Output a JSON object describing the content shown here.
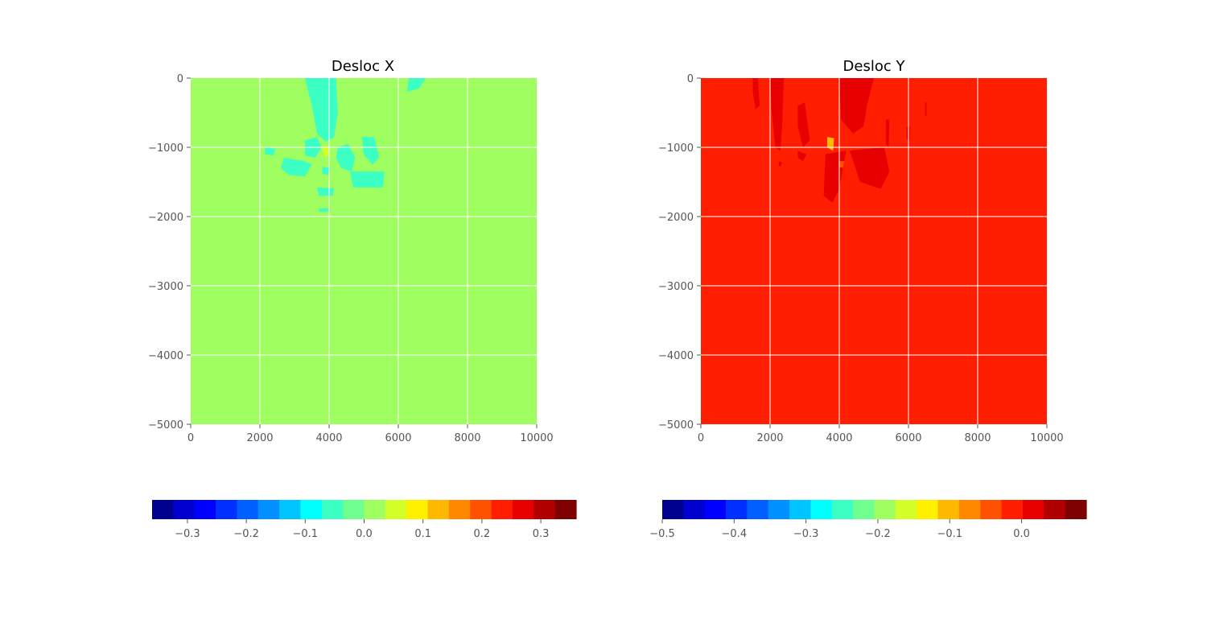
{
  "chart_data": [
    {
      "type": "heatmap",
      "title": "Desloc X",
      "xlabel": "",
      "ylabel": "",
      "xlim": [
        0,
        10000
      ],
      "ylim": [
        -5000,
        0
      ],
      "xticks": [
        0,
        2000,
        4000,
        6000,
        8000,
        10000
      ],
      "yticks": [
        0,
        -1000,
        -2000,
        -3000,
        -4000,
        -5000
      ],
      "grid": true,
      "field_background": "#a0ff60",
      "colorbar": {
        "range": [
          -0.36,
          0.36
        ],
        "ticks": [
          -0.3,
          -0.2,
          -0.1,
          0.0,
          0.1,
          0.2,
          0.3
        ],
        "tick_labels": [
          "−0.3",
          "−0.2",
          "−0.1",
          "0.0",
          "0.1",
          "0.2",
          "0.3"
        ],
        "colors": [
          "#00008f",
          "#0000cf",
          "#0000ff",
          "#0030ff",
          "#0060ff",
          "#0090ff",
          "#00c4ff",
          "#00ffff",
          "#3cffc4",
          "#6eff8e",
          "#a0ff60",
          "#d4ff28",
          "#fff000",
          "#ffb800",
          "#ff8800",
          "#ff5200",
          "#ff1f00",
          "#e60000",
          "#b00000",
          "#7f0000"
        ]
      },
      "regions": [
        {
          "value": -0.05,
          "polygon": [
            [
              3300,
              0
            ],
            [
              4200,
              0
            ],
            [
              4250,
              -500
            ],
            [
              4150,
              -850
            ],
            [
              3900,
              -920
            ],
            [
              3650,
              -800
            ],
            [
              3500,
              -400
            ]
          ]
        },
        {
          "value": -0.05,
          "polygon": [
            [
              3300,
              -900
            ],
            [
              3650,
              -850
            ],
            [
              3780,
              -1000
            ],
            [
              3600,
              -1150
            ],
            [
              3300,
              -1120
            ]
          ]
        },
        {
          "value": -0.05,
          "polygon": [
            [
              2700,
              -1150
            ],
            [
              3300,
              -1200
            ],
            [
              3500,
              -1250
            ],
            [
              3300,
              -1420
            ],
            [
              2850,
              -1400
            ],
            [
              2600,
              -1300
            ]
          ]
        },
        {
          "value": -0.05,
          "polygon": [
            [
              4250,
              -1000
            ],
            [
              4550,
              -950
            ],
            [
              4750,
              -1150
            ],
            [
              4650,
              -1350
            ],
            [
              4350,
              -1300
            ],
            [
              4200,
              -1150
            ]
          ]
        },
        {
          "value": -0.05,
          "polygon": [
            [
              4600,
              -1350
            ],
            [
              5600,
              -1350
            ],
            [
              5550,
              -1580
            ],
            [
              4700,
              -1580
            ]
          ]
        },
        {
          "value": -0.05,
          "polygon": [
            [
              4950,
              -850
            ],
            [
              5300,
              -850
            ],
            [
              5450,
              -1150
            ],
            [
              5250,
              -1250
            ],
            [
              5000,
              -1100
            ]
          ]
        },
        {
          "value": -0.05,
          "polygon": [
            [
              2150,
              -1000
            ],
            [
              2450,
              -1020
            ],
            [
              2400,
              -1120
            ],
            [
              2150,
              -1100
            ]
          ]
        },
        {
          "value": -0.05,
          "polygon": [
            [
              3650,
              -1580
            ],
            [
              4150,
              -1590
            ],
            [
              4100,
              -1700
            ],
            [
              3700,
              -1700
            ]
          ]
        },
        {
          "value": -0.05,
          "polygon": [
            [
              6300,
              0
            ],
            [
              6800,
              0
            ],
            [
              6600,
              -150
            ],
            [
              6250,
              -200
            ]
          ]
        },
        {
          "value": -0.05,
          "polygon": [
            [
              3800,
              -1280
            ],
            [
              4050,
              -1300
            ],
            [
              3950,
              -1400
            ],
            [
              3800,
              -1380
            ]
          ]
        },
        {
          "value": -0.05,
          "polygon": [
            [
              3700,
              -1880
            ],
            [
              4000,
              -1880
            ],
            [
              3950,
              -1930
            ],
            [
              3720,
              -1930
            ]
          ]
        },
        {
          "value": 0.05,
          "polygon": [
            [
              3800,
              -1000
            ],
            [
              3950,
              -980
            ],
            [
              4000,
              -1120
            ],
            [
              3850,
              -1140
            ]
          ]
        }
      ]
    },
    {
      "type": "heatmap",
      "title": "Desloc Y",
      "xlabel": "",
      "ylabel": "",
      "xlim": [
        0,
        10000
      ],
      "ylim": [
        -5000,
        0
      ],
      "xticks": [
        0,
        2000,
        4000,
        6000,
        8000,
        10000
      ],
      "yticks": [
        0,
        -1000,
        -2000,
        -3000,
        -4000,
        -5000
      ],
      "grid": true,
      "field_background": "#ff1f00",
      "colorbar": {
        "range": [
          -0.5,
          0.09
        ],
        "ticks": [
          -0.5,
          -0.4,
          -0.3,
          -0.2,
          -0.1,
          0.0
        ],
        "tick_labels": [
          "−0.5",
          "−0.4",
          "−0.3",
          "−0.2",
          "−0.1",
          "0.0"
        ],
        "colors": [
          "#00008f",
          "#0000cf",
          "#0000ff",
          "#0030ff",
          "#0060ff",
          "#0090ff",
          "#00c4ff",
          "#00ffff",
          "#3cffc4",
          "#6eff8e",
          "#a0ff60",
          "#d4ff28",
          "#fff000",
          "#ffb800",
          "#ff8800",
          "#ff5200",
          "#ff1f00",
          "#e60000",
          "#b00000",
          "#7f0000"
        ]
      },
      "regions": [
        {
          "value": 0.02,
          "polygon": [
            [
              1500,
              0
            ],
            [
              1650,
              0
            ],
            [
              1700,
              -400
            ],
            [
              1580,
              -450
            ],
            [
              1500,
              -200
            ]
          ]
        },
        {
          "value": 0.02,
          "polygon": [
            [
              2000,
              0
            ],
            [
              2400,
              0
            ],
            [
              2350,
              -700
            ],
            [
              2300,
              -1050
            ],
            [
              2150,
              -1000
            ],
            [
              2050,
              -500
            ]
          ]
        },
        {
          "value": 0.02,
          "polygon": [
            [
              2800,
              -400
            ],
            [
              3000,
              -350
            ],
            [
              3150,
              -900
            ],
            [
              2950,
              -1000
            ],
            [
              2800,
              -700
            ]
          ]
        },
        {
          "value": 0.02,
          "polygon": [
            [
              4000,
              0
            ],
            [
              5000,
              0
            ],
            [
              4800,
              -400
            ],
            [
              4700,
              -700
            ],
            [
              4400,
              -800
            ],
            [
              4050,
              -600
            ]
          ]
        },
        {
          "value": 0.02,
          "polygon": [
            [
              3600,
              -1100
            ],
            [
              4200,
              -1050
            ],
            [
              4000,
              -1600
            ],
            [
              3800,
              -1800
            ],
            [
              3550,
              -1700
            ]
          ]
        },
        {
          "value": 0.02,
          "polygon": [
            [
              4300,
              -1050
            ],
            [
              5300,
              -1000
            ],
            [
              5450,
              -1350
            ],
            [
              5200,
              -1600
            ],
            [
              4600,
              -1500
            ]
          ]
        },
        {
          "value": 0.02,
          "polygon": [
            [
              2800,
              -1050
            ],
            [
              3050,
              -1100
            ],
            [
              2950,
              -1200
            ],
            [
              2800,
              -1150
            ]
          ]
        },
        {
          "value": 0.02,
          "polygon": [
            [
              2250,
              -1200
            ],
            [
              2350,
              -1220
            ],
            [
              2300,
              -1280
            ],
            [
              2250,
              -1260
            ]
          ]
        },
        {
          "value": 0.02,
          "polygon": [
            [
              5350,
              -600
            ],
            [
              5450,
              -600
            ],
            [
              5430,
              -1000
            ],
            [
              5350,
              -950
            ]
          ]
        },
        {
          "value": 0.02,
          "polygon": [
            [
              5950,
              -700
            ],
            [
              6050,
              -700
            ],
            [
              6030,
              -900
            ],
            [
              5950,
              -880
            ]
          ]
        },
        {
          "value": 0.02,
          "polygon": [
            [
              6480,
              -350
            ],
            [
              6520,
              -350
            ],
            [
              6520,
              -550
            ],
            [
              6480,
              -550
            ]
          ]
        },
        {
          "value": -0.1,
          "polygon": [
            [
              3650,
              -850
            ],
            [
              3850,
              -870
            ],
            [
              3820,
              -1050
            ],
            [
              3650,
              -1000
            ]
          ]
        },
        {
          "value": -0.05,
          "polygon": [
            [
              4000,
              -1200
            ],
            [
              4150,
              -1200
            ],
            [
              4100,
              -1300
            ],
            [
              4000,
              -1280
            ]
          ]
        }
      ]
    }
  ]
}
